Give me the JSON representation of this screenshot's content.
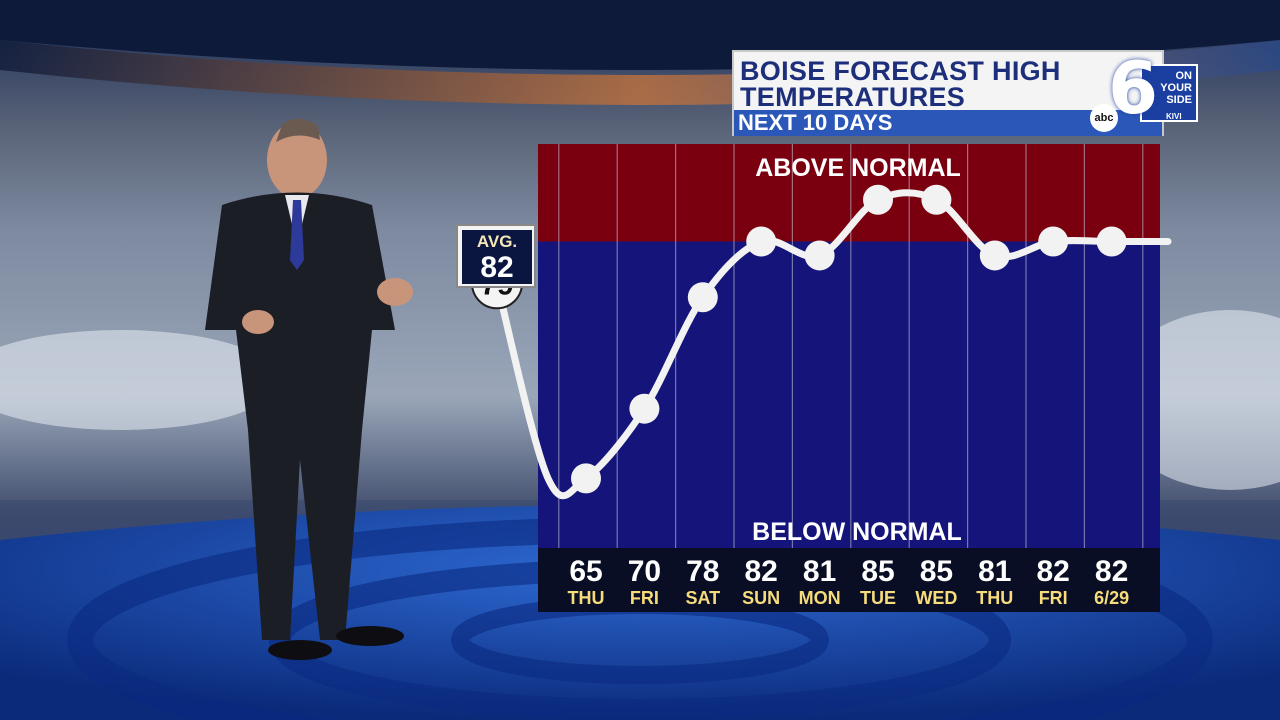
{
  "header": {
    "title_line1": "BOISE FORECAST HIGH",
    "title_line2": "TEMPERATURES",
    "subtitle": "NEXT 10 DAYS"
  },
  "logo": {
    "number": "6",
    "tag_line1": "ON",
    "tag_line2": "YOUR",
    "tag_line3": "SIDE",
    "network": "abc",
    "station": "KIVI"
  },
  "avg_box": {
    "label": "AVG.",
    "value": "82"
  },
  "colors": {
    "above_normal": "#7a0010",
    "below_normal": "#14147a",
    "line": "#f2f2f2",
    "day_label": "#f6dc7a",
    "title_text": "#1d2f7a",
    "subtitle_bar": "#2b58b8"
  },
  "chart_data": {
    "type": "line",
    "title": "BOISE FORECAST HIGH TEMPERATURES",
    "subtitle": "NEXT 10 DAYS",
    "zone_labels": {
      "above": "ABOVE NORMAL",
      "below": "BELOW NORMAL"
    },
    "normal_value": 82,
    "start_label": "79",
    "start_value": 79,
    "categories": [
      "THU",
      "FRI",
      "SAT",
      "SUN",
      "MON",
      "TUE",
      "WED",
      "THU",
      "FRI",
      "6/29"
    ],
    "values": [
      65,
      70,
      78,
      82,
      81,
      85,
      85,
      81,
      82,
      82
    ],
    "value_labels": [
      "65",
      "70",
      "78",
      "82",
      "81",
      "85",
      "85",
      "81",
      "82",
      "82"
    ],
    "ylim": [
      60,
      89
    ],
    "grid": true
  }
}
